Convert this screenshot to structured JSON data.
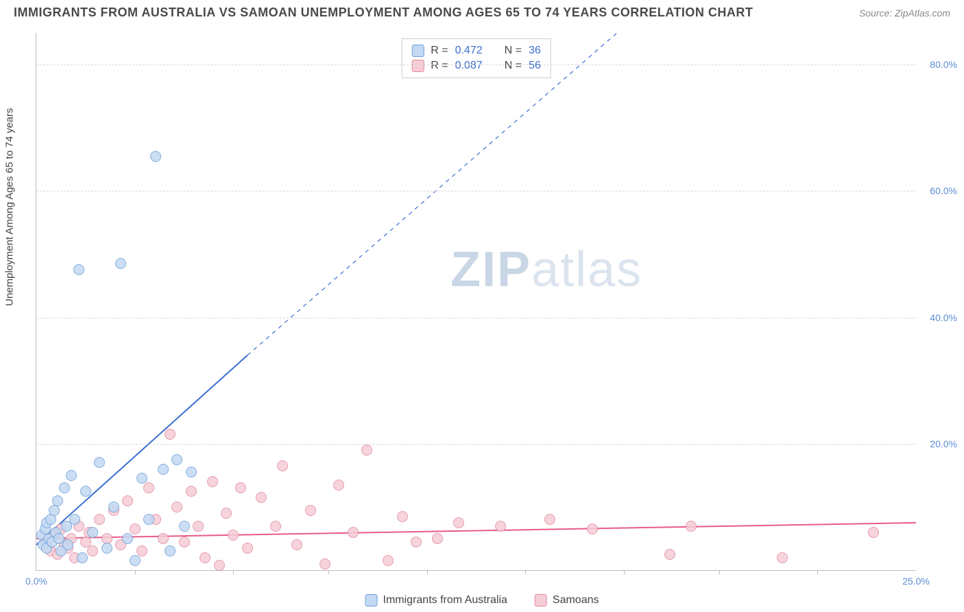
{
  "title": "IMMIGRANTS FROM AUSTRALIA VS SAMOAN UNEMPLOYMENT AMONG AGES 65 TO 74 YEARS CORRELATION CHART",
  "source": "Source: ZipAtlas.com",
  "watermark_a": "ZIP",
  "watermark_b": "atlas",
  "chart": {
    "type": "scatter",
    "y_axis_title": "Unemployment Among Ages 65 to 74 years",
    "xlim": [
      0,
      25
    ],
    "ylim": [
      0,
      85
    ],
    "xtick_labels": [
      "0.0%",
      "25.0%"
    ],
    "xtick_positions": [
      0,
      25
    ],
    "xtick_minor": [
      2.8,
      5.6,
      8.3,
      11.1,
      13.9,
      16.7,
      19.4,
      22.2
    ],
    "ytick_labels": [
      "20.0%",
      "40.0%",
      "60.0%",
      "80.0%"
    ],
    "ytick_positions": [
      20,
      40,
      60,
      80
    ],
    "grid_color": "#d8d8d8",
    "background_color": "#ffffff",
    "tick_label_color": "#5b8dd6",
    "tick_label_fontsize": 14,
    "axis_title_fontsize": 15,
    "title_fontsize": 18,
    "marker_radius": 8,
    "line_width_solid": 2,
    "line_width_dashed": 1.2,
    "series": [
      {
        "name": "Immigrants from Australia",
        "fill": "#c3d9f3",
        "stroke": "#6f9fd8",
        "line_color": "#3b6fd1",
        "R": "0.472",
        "N": "36",
        "trend_solid": {
          "x1": 0,
          "y1": 4,
          "x2": 6,
          "y2": 34
        },
        "trend_dashed": {
          "x1": 6,
          "y1": 34,
          "x2": 16.5,
          "y2": 85
        },
        "points": [
          [
            0.15,
            5.5
          ],
          [
            0.2,
            4.0
          ],
          [
            0.25,
            6.5
          ],
          [
            0.3,
            3.5
          ],
          [
            0.3,
            7.5
          ],
          [
            0.35,
            5.0
          ],
          [
            0.4,
            8.0
          ],
          [
            0.45,
            4.5
          ],
          [
            0.5,
            9.5
          ],
          [
            0.55,
            6.0
          ],
          [
            0.6,
            11.0
          ],
          [
            0.65,
            5.0
          ],
          [
            0.7,
            3.0
          ],
          [
            0.8,
            13.0
          ],
          [
            0.85,
            7.0
          ],
          [
            0.9,
            4.0
          ],
          [
            1.0,
            15.0
          ],
          [
            1.1,
            8.0
          ],
          [
            1.2,
            47.5
          ],
          [
            1.3,
            2.0
          ],
          [
            1.4,
            12.5
          ],
          [
            1.6,
            6.0
          ],
          [
            1.8,
            17.0
          ],
          [
            2.0,
            3.5
          ],
          [
            2.2,
            10.0
          ],
          [
            2.4,
            48.5
          ],
          [
            2.6,
            5.0
          ],
          [
            2.8,
            1.5
          ],
          [
            3.0,
            14.5
          ],
          [
            3.2,
            8.0
          ],
          [
            3.4,
            65.5
          ],
          [
            3.6,
            16.0
          ],
          [
            3.8,
            3.0
          ],
          [
            4.0,
            17.5
          ],
          [
            4.2,
            7.0
          ],
          [
            4.4,
            15.5
          ]
        ]
      },
      {
        "name": "Samoans",
        "fill": "#f6cdd7",
        "stroke": "#e18aa0",
        "line_color": "#e75a8a",
        "R": "0.087",
        "N": "56",
        "trend_solid": {
          "x1": 0,
          "y1": 5.0,
          "x2": 25,
          "y2": 7.5
        },
        "trend_dashed": null,
        "points": [
          [
            0.3,
            4.5
          ],
          [
            0.4,
            3.0
          ],
          [
            0.5,
            5.5
          ],
          [
            0.6,
            2.5
          ],
          [
            0.7,
            6.5
          ],
          [
            0.8,
            4.0
          ],
          [
            0.9,
            3.5
          ],
          [
            1.0,
            5.0
          ],
          [
            1.1,
            2.0
          ],
          [
            1.2,
            7.0
          ],
          [
            1.4,
            4.5
          ],
          [
            1.5,
            6.0
          ],
          [
            1.6,
            3.0
          ],
          [
            1.8,
            8.0
          ],
          [
            2.0,
            5.0
          ],
          [
            2.2,
            9.5
          ],
          [
            2.4,
            4.0
          ],
          [
            2.6,
            11.0
          ],
          [
            2.8,
            6.5
          ],
          [
            3.0,
            3.0
          ],
          [
            3.2,
            13.0
          ],
          [
            3.4,
            8.0
          ],
          [
            3.6,
            5.0
          ],
          [
            3.8,
            21.5
          ],
          [
            4.0,
            10.0
          ],
          [
            4.2,
            4.5
          ],
          [
            4.4,
            12.5
          ],
          [
            4.6,
            7.0
          ],
          [
            4.8,
            2.0
          ],
          [
            5.0,
            14.0
          ],
          [
            5.2,
            0.8
          ],
          [
            5.4,
            9.0
          ],
          [
            5.6,
            5.5
          ],
          [
            5.8,
            13.0
          ],
          [
            6.0,
            3.5
          ],
          [
            6.4,
            11.5
          ],
          [
            6.8,
            7.0
          ],
          [
            7.0,
            16.5
          ],
          [
            7.4,
            4.0
          ],
          [
            7.8,
            9.5
          ],
          [
            8.2,
            1.0
          ],
          [
            8.6,
            13.5
          ],
          [
            9.0,
            6.0
          ],
          [
            9.4,
            19.0
          ],
          [
            10.0,
            1.5
          ],
          [
            10.4,
            8.5
          ],
          [
            10.8,
            4.5
          ],
          [
            11.4,
            5.0
          ],
          [
            12.0,
            7.5
          ],
          [
            13.2,
            7.0
          ],
          [
            14.6,
            8.0
          ],
          [
            15.8,
            6.5
          ],
          [
            18.0,
            2.5
          ],
          [
            18.6,
            7.0
          ],
          [
            21.2,
            2.0
          ],
          [
            23.8,
            6.0
          ]
        ]
      }
    ]
  },
  "stats_labels": {
    "R": "R =",
    "N": "N ="
  },
  "legend_label_a": "Immigrants from Australia",
  "legend_label_b": "Samoans"
}
